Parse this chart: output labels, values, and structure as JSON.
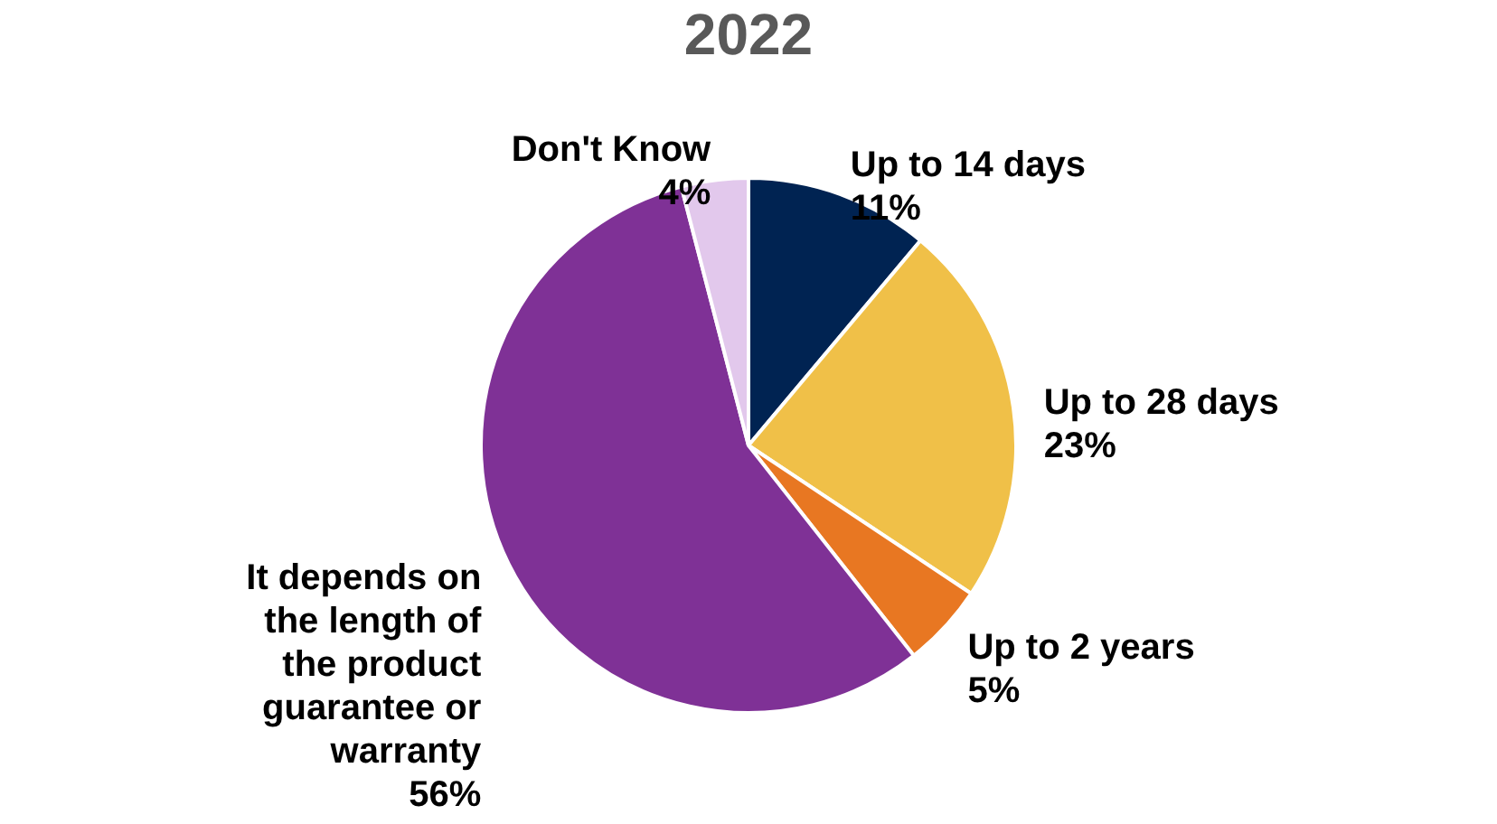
{
  "chart_data": {
    "type": "pie",
    "title": "2022",
    "categories": [
      "Up to 14 days",
      "Up to 28 days",
      "Up to 2 years",
      "It depends on the length of the product guarantee or warranty",
      "Don't Know"
    ],
    "values": [
      11,
      23,
      5,
      56,
      4
    ],
    "value_labels": [
      "11%",
      "23%",
      "5%",
      "56%",
      "4%"
    ],
    "colors": [
      "#002352",
      "#f0c048",
      "#e87722",
      "#7f3196",
      "#e2c8ec"
    ],
    "legend": false
  }
}
